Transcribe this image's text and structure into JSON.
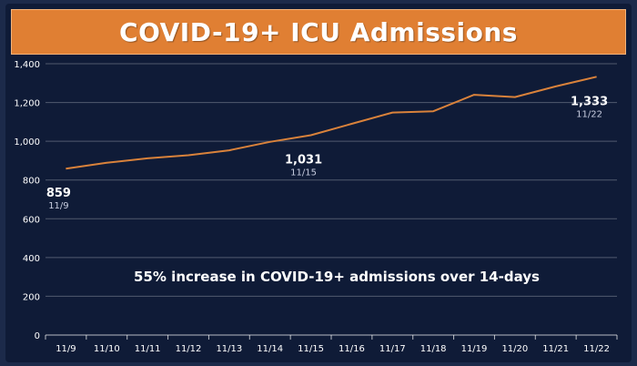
{
  "chart_data": {
    "type": "line",
    "title": "COVID-19+ ICU Admissions",
    "categories": [
      "11/9",
      "11/10",
      "11/11",
      "11/12",
      "11/13",
      "11/14",
      "11/15",
      "11/16",
      "11/17",
      "11/18",
      "11/19",
      "11/20",
      "11/21",
      "11/22"
    ],
    "series": [
      {
        "values": [
          859,
          889,
          912,
          928,
          953,
          997,
          1031,
          1090,
          1148,
          1155,
          1240,
          1228,
          1283,
          1333
        ]
      }
    ],
    "ylim": [
      0,
      1400
    ],
    "yticks": [
      0,
      200,
      400,
      600,
      800,
      1000,
      1200,
      1400
    ],
    "ytick_labels": [
      "0",
      "200",
      "400",
      "600",
      "800",
      "1,000",
      "1,200",
      "1,400"
    ],
    "line_color": "#d9823b",
    "grid": true,
    "annotations": [
      {
        "index": 0,
        "value_label": "859",
        "date_label": "11/9"
      },
      {
        "index": 6,
        "value_label": "1,031",
        "date_label": "11/15"
      },
      {
        "index": 13,
        "value_label": "1,333",
        "date_label": "11/22"
      }
    ],
    "note": "55% increase in COVID-19+ admissions over 14-days"
  }
}
